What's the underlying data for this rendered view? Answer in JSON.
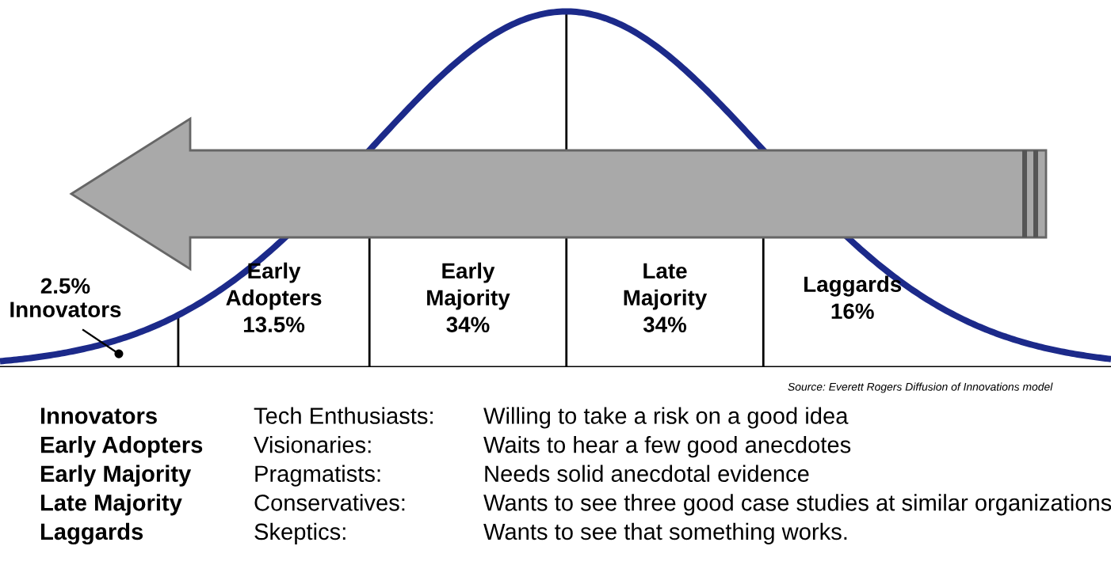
{
  "chart_data": {
    "type": "other",
    "categories": [
      "Innovators",
      "Early Adopters",
      "Early Majority",
      "Late Majority",
      "Laggards"
    ],
    "values": [
      2.5,
      13.5,
      34,
      34,
      16
    ],
    "value_labels": [
      "2.5%",
      "13.5%",
      "34%",
      "34%",
      "16%"
    ],
    "color": "#1c2a8a",
    "annotations": [
      "Source: Everett Rogers Diffusion of Innovations model",
      "Innovators",
      "Tech Enthusiasts:",
      "Willing to take a risk on a good idea",
      "Early Adopters",
      "Visionaries:",
      "Waits to hear a few good anecdotes",
      "Early Majority",
      "Pragmatists:",
      "Needs solid anecdotal evidence",
      "Late Majority",
      "Conservatives:",
      "Wants to see three good case studies at similar organizations",
      "Laggards",
      "Skeptics:",
      "Wants to see that something works."
    ]
  }
}
